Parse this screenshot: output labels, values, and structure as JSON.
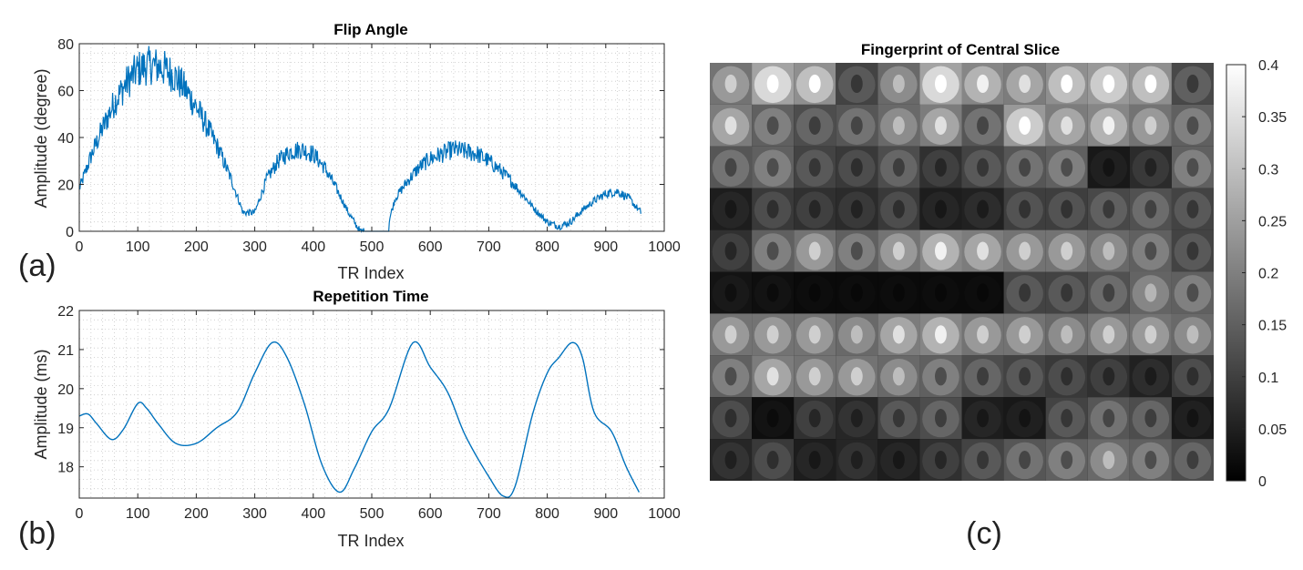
{
  "chart_data": [
    {
      "type": "line",
      "title": "Flip Angle",
      "xlabel": "TR Index",
      "ylabel": "Amplitude (degree)",
      "xlim": [
        0,
        1000
      ],
      "ylim": [
        0,
        80
      ],
      "xticks": [
        "0",
        "100",
        "200",
        "300",
        "400",
        "500",
        "600",
        "700",
        "800",
        "900",
        "1000"
      ],
      "yticks": [
        "0",
        "20",
        "40",
        "60",
        "80"
      ],
      "grid": "dotted",
      "line_color": "#0072bd",
      "series": [
        {
          "x": [
            0,
            20,
            40,
            60,
            80,
            100,
            120,
            140,
            160,
            180,
            200,
            220,
            240,
            260,
            280,
            300,
            320,
            340,
            360,
            380,
            400,
            420,
            440,
            460,
            470,
            480,
            490,
            500,
            520,
            530,
            540,
            560,
            580,
            600,
            620,
            640,
            660,
            680,
            700,
            720,
            740,
            760,
            780,
            800,
            820,
            840,
            860,
            880,
            900,
            920,
            940,
            960
          ],
          "y": [
            18,
            32,
            44,
            55,
            63,
            69,
            71,
            70,
            67,
            61,
            53,
            44,
            34,
            22,
            8,
            8,
            22,
            30,
            34,
            35,
            33,
            27,
            18,
            8,
            4,
            0,
            0,
            0,
            0,
            5,
            14,
            21,
            27,
            31,
            33,
            35,
            34,
            33,
            30,
            26,
            21,
            15,
            9,
            4,
            2,
            4,
            9,
            13,
            16,
            17,
            14,
            8
          ]
        }
      ],
      "panel_label": "(a)"
    },
    {
      "type": "line",
      "title": "Repetition Time",
      "xlabel": "TR Index",
      "ylabel": "Amplitude (ms)",
      "xlim": [
        0,
        1000
      ],
      "ylim": [
        17.2,
        22
      ],
      "xticks": [
        "0",
        "100",
        "200",
        "300",
        "400",
        "500",
        "600",
        "700",
        "800",
        "900",
        "1000"
      ],
      "yticks": [
        "18",
        "19",
        "20",
        "21",
        "22"
      ],
      "grid": "dotted",
      "line_color": "#0072bd",
      "series": [
        {
          "x": [
            0,
            15,
            30,
            55,
            75,
            100,
            115,
            135,
            165,
            200,
            235,
            270,
            300,
            330,
            355,
            385,
            415,
            445,
            470,
            500,
            530,
            570,
            600,
            630,
            660,
            700,
            725,
            745,
            775,
            800,
            820,
            843,
            860,
            880,
            910,
            935,
            957
          ],
          "y": [
            19.3,
            19.35,
            19.1,
            18.7,
            18.95,
            19.62,
            19.5,
            19.1,
            18.6,
            18.6,
            19.0,
            19.4,
            20.4,
            21.18,
            20.8,
            19.6,
            18.05,
            17.35,
            17.95,
            18.9,
            19.5,
            21.17,
            20.55,
            19.9,
            18.8,
            17.75,
            17.25,
            17.5,
            19.35,
            20.4,
            20.8,
            21.18,
            20.8,
            19.4,
            18.9,
            18.0,
            17.35
          ]
        }
      ],
      "panel_label": "(b)"
    },
    {
      "type": "heatmap",
      "title": "Fingerprint of Central Slice",
      "colormap": "gray",
      "clim": [
        0,
        0.4
      ],
      "colorbar_ticks": [
        "0",
        "0.05",
        "0.1",
        "0.15",
        "0.2",
        "0.25",
        "0.3",
        "0.35",
        "0.4"
      ],
      "rows": 10,
      "cols": 12,
      "tile_intensity": [
        [
          0.24,
          0.34,
          0.3,
          0.14,
          0.22,
          0.34,
          0.28,
          0.26,
          0.3,
          0.32,
          0.3,
          0.15
        ],
        [
          0.26,
          0.2,
          0.16,
          0.18,
          0.22,
          0.26,
          0.18,
          0.32,
          0.26,
          0.28,
          0.24,
          0.2
        ],
        [
          0.18,
          0.2,
          0.14,
          0.12,
          0.16,
          0.1,
          0.14,
          0.18,
          0.2,
          0.05,
          0.09,
          0.2
        ],
        [
          0.06,
          0.12,
          0.1,
          0.09,
          0.12,
          0.06,
          0.07,
          0.13,
          0.13,
          0.15,
          0.17,
          0.14
        ],
        [
          0.1,
          0.2,
          0.24,
          0.2,
          0.24,
          0.28,
          0.26,
          0.24,
          0.24,
          0.22,
          0.2,
          0.14
        ],
        [
          0.04,
          0.03,
          0.02,
          0.02,
          0.02,
          0.02,
          0.02,
          0.14,
          0.14,
          0.17,
          0.21,
          0.2
        ],
        [
          0.24,
          0.24,
          0.24,
          0.22,
          0.26,
          0.28,
          0.24,
          0.24,
          0.22,
          0.24,
          0.24,
          0.22
        ],
        [
          0.2,
          0.26,
          0.24,
          0.24,
          0.22,
          0.2,
          0.16,
          0.14,
          0.12,
          0.1,
          0.07,
          0.12
        ],
        [
          0.12,
          0.03,
          0.1,
          0.08,
          0.14,
          0.16,
          0.06,
          0.05,
          0.14,
          0.18,
          0.16,
          0.05
        ],
        [
          0.08,
          0.12,
          0.06,
          0.08,
          0.06,
          0.1,
          0.14,
          0.18,
          0.2,
          0.22,
          0.2,
          0.16
        ]
      ],
      "panel_label": "(c)"
    }
  ]
}
